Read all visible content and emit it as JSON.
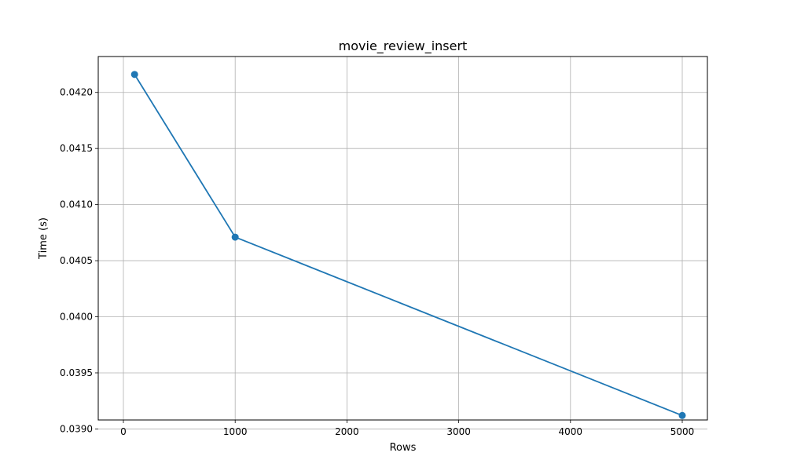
{
  "chart_data": {
    "type": "line",
    "title": "movie_review_insert",
    "xlabel": "Rows",
    "ylabel": "Time (s)",
    "xlim": [
      -225,
      5225
    ],
    "ylim": [
      0.03908,
      0.04232
    ],
    "xticks": [
      0,
      1000,
      2000,
      3000,
      4000,
      5000
    ],
    "yticks": [
      0.039,
      0.0395,
      0.04,
      0.0405,
      0.041,
      0.0415,
      0.042
    ],
    "ytick_labels": [
      "0.0390",
      "0.0395",
      "0.0400",
      "0.0405",
      "0.0410",
      "0.0415",
      "0.0420"
    ],
    "grid": true,
    "series": [
      {
        "x": [
          100,
          1000,
          5000
        ],
        "values": [
          0.04216,
          0.04071,
          0.03912
        ],
        "color": "#1f77b4",
        "marker": "circle"
      }
    ]
  }
}
